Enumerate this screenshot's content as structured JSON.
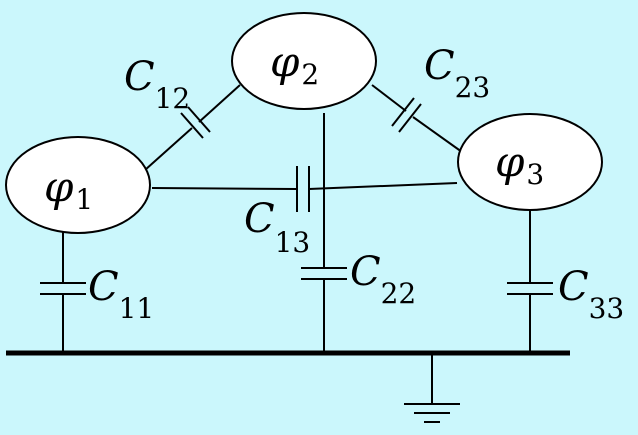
{
  "conductors": [
    {
      "id": "phi1",
      "symbol": "φ",
      "index": "1"
    },
    {
      "id": "phi2",
      "symbol": "φ",
      "index": "2"
    },
    {
      "id": "phi3",
      "symbol": "φ",
      "index": "3"
    }
  ],
  "capacitors": {
    "c12": {
      "symbol": "C",
      "index": "12"
    },
    "c23": {
      "symbol": "C",
      "index": "23"
    },
    "c13": {
      "symbol": "C",
      "index": "13"
    },
    "c11": {
      "symbol": "C",
      "index": "11"
    },
    "c22": {
      "symbol": "C",
      "index": "22"
    },
    "c33": {
      "symbol": "C",
      "index": "33"
    }
  },
  "colors": {
    "background": "#cbf7fc",
    "conductor_fill": "#ffffff",
    "wire": "#000000"
  }
}
